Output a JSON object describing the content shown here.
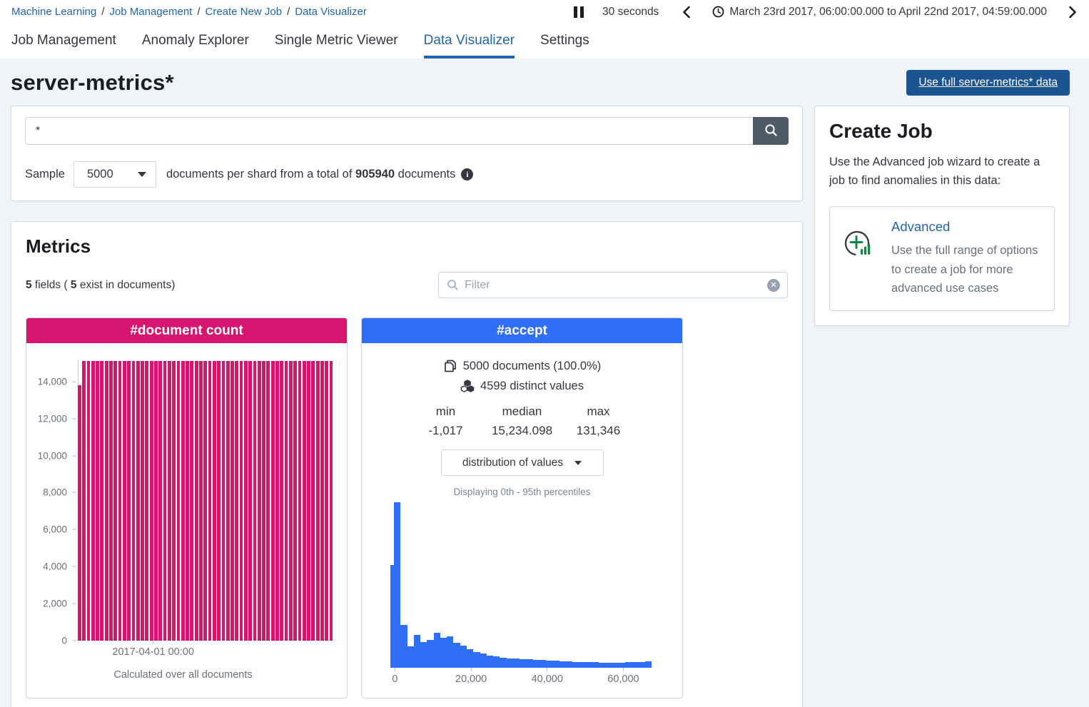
{
  "breadcrumbs": {
    "separator": "/",
    "items": [
      "Machine Learning",
      "Job Management",
      "Create New Job",
      "Data Visualizer"
    ]
  },
  "topbar": {
    "refresh_interval": "30 seconds",
    "time_range": "March 23rd 2017, 06:00:00.000 to April 22nd 2017, 04:59:00.000"
  },
  "tabs": {
    "items": [
      {
        "label": "Job Management",
        "active": false
      },
      {
        "label": "Anomaly Explorer",
        "active": false
      },
      {
        "label": "Single Metric Viewer",
        "active": false
      },
      {
        "label": "Data Visualizer",
        "active": true
      },
      {
        "label": "Settings",
        "active": false
      }
    ]
  },
  "page": {
    "title": "server-metrics*",
    "full_data_button": "Use full server-metrics* data"
  },
  "search": {
    "query": "*",
    "sample_label": "Sample",
    "sample_value": "5000",
    "text_after_select": "documents per shard from a total of",
    "total_documents": "905940",
    "text_after_total": "documents"
  },
  "metrics": {
    "heading": "Metrics",
    "fields_count": "5",
    "fields_text_1": " fields ( ",
    "fields_exist_count": "5",
    "fields_text_2": " exist in documents)",
    "filter_placeholder": "Filter"
  },
  "document_count_card": {
    "title": "#document count",
    "caption": "Calculated over all documents"
  },
  "accept_card": {
    "title": "#accept",
    "documents_line": "5000 documents (100.0%)",
    "distinct_line": "4599 distinct values",
    "min_label": "min",
    "min_value": "-1,017",
    "median_label": "median",
    "median_value": "15,234.098",
    "max_label": "max",
    "max_value": "131,346",
    "dropdown_value": "distribution of values",
    "percentiles_note": "Displaying 0th - 95th percentiles"
  },
  "create_job": {
    "heading": "Create Job",
    "description": "Use the Advanced job wizard to create a job to find anomalies in this data:",
    "advanced_label": "Advanced",
    "advanced_description": "Use the full range of options to create a job for more advanced use cases"
  },
  "colors": {
    "accent_pink": "#d7146e",
    "primary_blue": "#2f6ef7",
    "link_blue": "#2165b0",
    "dark_button_blue": "#1b5491"
  },
  "chart_data": [
    {
      "id": "document_count",
      "type": "bar",
      "title": "#document count",
      "note": "Calculated over all documents",
      "ylim": [
        0,
        15150
      ],
      "y_ticks": [
        {
          "v": 0,
          "label": "0"
        },
        {
          "v": 2000,
          "label": "2,000"
        },
        {
          "v": 4000,
          "label": "4,000"
        },
        {
          "v": 6000,
          "label": "6,000"
        },
        {
          "v": 8000,
          "label": "8,000"
        },
        {
          "v": 10000,
          "label": "10,000"
        },
        {
          "v": 12000,
          "label": "12,000"
        },
        {
          "v": 14000,
          "label": "14,000"
        }
      ],
      "x_tick": {
        "label": "2017-04-01 00:00",
        "position": 0.296
      },
      "bar_color": "#d7146e",
      "values": [
        13800,
        15100,
        15100,
        15100,
        15100,
        15100,
        15100,
        15100,
        15100,
        15100,
        15100,
        15100,
        15100,
        15100,
        15100,
        15100,
        15100,
        15100,
        15100,
        15100,
        15100,
        15100,
        15100,
        15100,
        15100,
        15100,
        15100,
        15100,
        15100,
        15100,
        15100,
        15100,
        15100,
        15100,
        15100,
        15100,
        15100,
        15100,
        15100,
        15100,
        15100,
        15100,
        15100,
        15100,
        15100,
        15100,
        15100,
        15100,
        15100,
        15100,
        15100,
        15100,
        15100,
        15100,
        15100,
        15100,
        15100
      ]
    },
    {
      "id": "accept_distribution",
      "type": "histogram",
      "title": "#accept distribution of values",
      "subtitle": "Displaying 0th - 95th percentiles",
      "xlim": [
        -1200,
        67600
      ],
      "x_ticks": [
        {
          "v": 0,
          "label": "0"
        },
        {
          "v": 20000,
          "label": "20,000"
        },
        {
          "v": 40000,
          "label": "40,000"
        },
        {
          "v": 60000,
          "label": "60,000"
        }
      ],
      "bar_color": "#2f6ef7",
      "bars_note": "heights are relative to tallest bin (spike at 0); w is relative bin width",
      "bars": [
        {
          "h": 0.62,
          "w": 0.55
        },
        {
          "h": 1.0,
          "w": 1
        },
        {
          "h": 0.26,
          "w": 1
        },
        {
          "h": 0.13,
          "w": 1
        },
        {
          "h": 0.2,
          "w": 1
        },
        {
          "h": 0.155,
          "w": 1
        },
        {
          "h": 0.17,
          "w": 1
        },
        {
          "h": 0.21,
          "w": 1
        },
        {
          "h": 0.18,
          "w": 1
        },
        {
          "h": 0.19,
          "w": 1
        },
        {
          "h": 0.15,
          "w": 1
        },
        {
          "h": 0.135,
          "w": 1
        },
        {
          "h": 0.11,
          "w": 1
        },
        {
          "h": 0.095,
          "w": 1
        },
        {
          "h": 0.085,
          "w": 1
        },
        {
          "h": 0.075,
          "w": 1
        },
        {
          "h": 0.068,
          "w": 1
        },
        {
          "h": 0.062,
          "w": 1
        },
        {
          "h": 0.058,
          "w": 1
        },
        {
          "h": 0.055,
          "w": 1
        },
        {
          "h": 0.052,
          "w": 1
        },
        {
          "h": 0.05,
          "w": 1
        },
        {
          "h": 0.048,
          "w": 1
        },
        {
          "h": 0.046,
          "w": 1
        },
        {
          "h": 0.044,
          "w": 1
        },
        {
          "h": 0.042,
          "w": 1
        },
        {
          "h": 0.04,
          "w": 1
        },
        {
          "h": 0.038,
          "w": 1
        },
        {
          "h": 0.036,
          "w": 1
        },
        {
          "h": 0.035,
          "w": 1
        },
        {
          "h": 0.034,
          "w": 1
        },
        {
          "h": 0.033,
          "w": 1
        },
        {
          "h": 0.032,
          "w": 1
        },
        {
          "h": 0.031,
          "w": 1
        },
        {
          "h": 0.03,
          "w": 1
        },
        {
          "h": 0.03,
          "w": 1
        },
        {
          "h": 0.034,
          "w": 1
        },
        {
          "h": 0.034,
          "w": 1
        },
        {
          "h": 0.036,
          "w": 1
        },
        {
          "h": 0.038,
          "w": 1
        }
      ]
    }
  ]
}
